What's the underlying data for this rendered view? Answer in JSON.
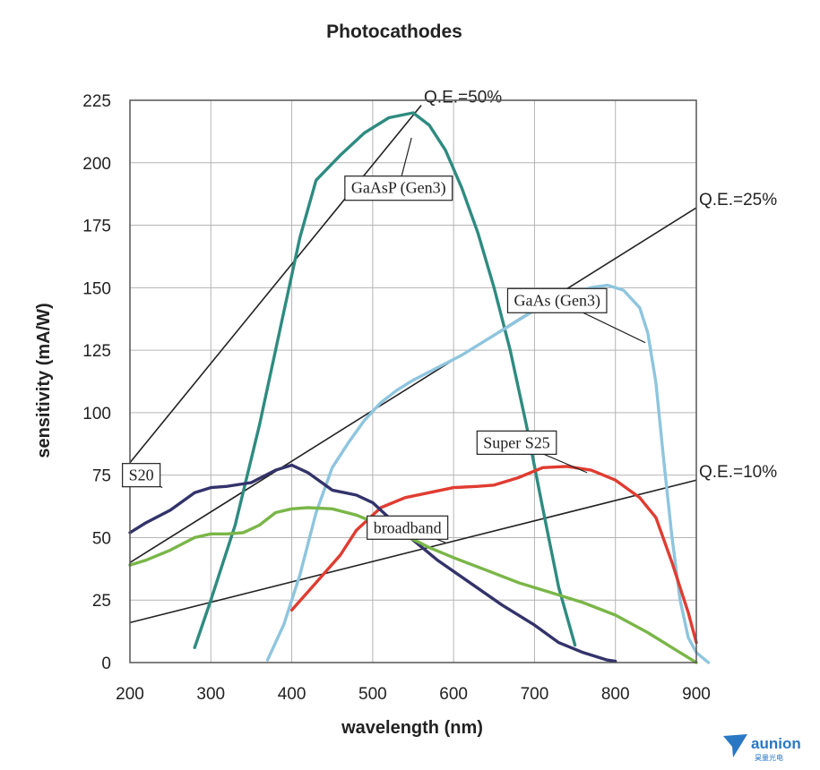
{
  "chart_data": {
    "type": "line",
    "title": "Photocathodes",
    "xlabel": "wavelength (nm)",
    "ylabel": "sensitivity (mA/W)",
    "xlim": [
      200,
      900
    ],
    "ylim": [
      0,
      225
    ],
    "xticks": [
      "200",
      "300",
      "400",
      "500",
      "600",
      "700",
      "800",
      "900"
    ],
    "yticks": [
      "0",
      "25",
      "50",
      "75",
      "100",
      "125",
      "150",
      "175",
      "200",
      "225"
    ],
    "grid": true,
    "series": [
      {
        "name": "GaAsP (Gen3)",
        "color": "#2e8b80",
        "points": [
          [
            280,
            6
          ],
          [
            300,
            25
          ],
          [
            330,
            55
          ],
          [
            360,
            95
          ],
          [
            390,
            140
          ],
          [
            410,
            170
          ],
          [
            430,
            193
          ],
          [
            460,
            203
          ],
          [
            490,
            212
          ],
          [
            520,
            218
          ],
          [
            550,
            220
          ],
          [
            570,
            215
          ],
          [
            590,
            205
          ],
          [
            610,
            190
          ],
          [
            630,
            172
          ],
          [
            650,
            150
          ],
          [
            670,
            125
          ],
          [
            690,
            95
          ],
          [
            710,
            62
          ],
          [
            730,
            30
          ],
          [
            750,
            7
          ]
        ]
      },
      {
        "name": "GaAs (Gen3)",
        "color": "#8ec5de",
        "points": [
          [
            370,
            1
          ],
          [
            390,
            15
          ],
          [
            410,
            35
          ],
          [
            430,
            60
          ],
          [
            450,
            78
          ],
          [
            470,
            88
          ],
          [
            490,
            97
          ],
          [
            510,
            104
          ],
          [
            530,
            109
          ],
          [
            550,
            113
          ],
          [
            580,
            118
          ],
          [
            610,
            123
          ],
          [
            650,
            131
          ],
          [
            700,
            141
          ],
          [
            740,
            147
          ],
          [
            770,
            150
          ],
          [
            790,
            151
          ],
          [
            810,
            149
          ],
          [
            830,
            142
          ],
          [
            840,
            132
          ],
          [
            850,
            112
          ],
          [
            860,
            80
          ],
          [
            870,
            50
          ],
          [
            880,
            25
          ],
          [
            890,
            10
          ],
          [
            900,
            4
          ],
          [
            915,
            0
          ]
        ]
      },
      {
        "name": "Super S25",
        "color": "#e03c31",
        "points": [
          [
            400,
            21
          ],
          [
            430,
            32
          ],
          [
            460,
            43
          ],
          [
            480,
            53
          ],
          [
            510,
            62
          ],
          [
            540,
            66
          ],
          [
            570,
            68
          ],
          [
            600,
            70
          ],
          [
            630,
            70.5
          ],
          [
            650,
            71
          ],
          [
            680,
            74
          ],
          [
            710,
            78
          ],
          [
            740,
            78.5
          ],
          [
            770,
            77
          ],
          [
            800,
            73
          ],
          [
            830,
            66
          ],
          [
            850,
            58
          ],
          [
            870,
            40
          ],
          [
            890,
            20
          ],
          [
            900,
            8
          ]
        ]
      },
      {
        "name": "S20",
        "color": "#33336b",
        "points": [
          [
            200,
            52
          ],
          [
            220,
            56
          ],
          [
            250,
            61
          ],
          [
            280,
            68
          ],
          [
            300,
            70
          ],
          [
            320,
            70.5
          ],
          [
            350,
            72
          ],
          [
            380,
            77
          ],
          [
            400,
            79
          ],
          [
            420,
            76
          ],
          [
            450,
            69
          ],
          [
            480,
            67
          ],
          [
            500,
            64
          ],
          [
            520,
            58
          ],
          [
            550,
            49
          ],
          [
            580,
            41
          ],
          [
            620,
            32
          ],
          [
            660,
            23
          ],
          [
            700,
            15
          ],
          [
            730,
            8
          ],
          [
            760,
            4
          ],
          [
            790,
            1
          ],
          [
            800,
            0.5
          ]
        ]
      },
      {
        "name": "broadband",
        "color": "#7ab648",
        "points": [
          [
            200,
            39
          ],
          [
            220,
            41
          ],
          [
            250,
            45
          ],
          [
            280,
            50
          ],
          [
            300,
            51.5
          ],
          [
            320,
            51.5
          ],
          [
            340,
            52
          ],
          [
            360,
            55
          ],
          [
            380,
            60
          ],
          [
            400,
            61.5
          ],
          [
            420,
            62
          ],
          [
            450,
            61.5
          ],
          [
            480,
            59
          ],
          [
            510,
            55
          ],
          [
            540,
            51
          ],
          [
            570,
            46
          ],
          [
            600,
            42
          ],
          [
            640,
            37
          ],
          [
            680,
            32
          ],
          [
            720,
            28
          ],
          [
            760,
            24
          ],
          [
            800,
            19
          ],
          [
            840,
            12
          ],
          [
            870,
            6
          ],
          [
            900,
            0
          ]
        ]
      }
    ],
    "reference_lines": [
      {
        "label": "Q.E.=50%",
        "points": [
          [
            200,
            80
          ],
          [
            560,
            223
          ]
        ]
      },
      {
        "label": "Q.E.=25%",
        "points": [
          [
            200,
            40
          ],
          [
            900,
            182
          ]
        ]
      },
      {
        "label": "Q.E.=10%",
        "points": [
          [
            200,
            16
          ],
          [
            900,
            73
          ]
        ]
      }
    ],
    "annotations": [
      {
        "text": "GaAsP (Gen3)",
        "x": 532,
        "y": 190
      },
      {
        "text": "GaAs (Gen3)",
        "x": 728,
        "y": 145
      },
      {
        "text": "Super S25",
        "x": 678,
        "y": 88
      },
      {
        "text": "S20",
        "x": 214,
        "y": 75
      },
      {
        "text": "broadband",
        "x": 543,
        "y": 54
      }
    ]
  },
  "logo": {
    "name": "aunion",
    "subtitle": "昊量光电",
    "color": "#2a78c4"
  }
}
